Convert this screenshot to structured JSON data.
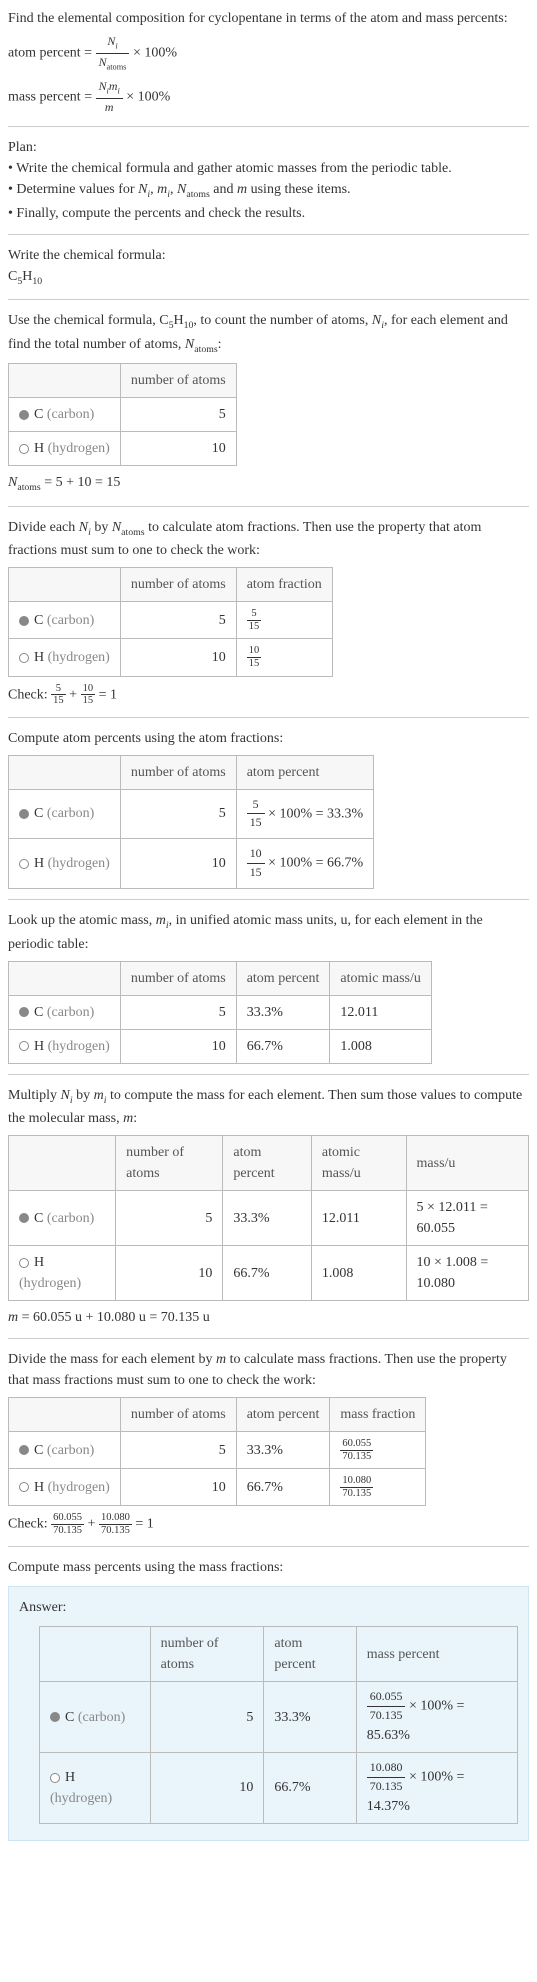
{
  "intro": {
    "line1": "Find the elemental composition for cyclopentane in terms of the atom and mass percents:",
    "atom_percent_label": "atom percent = ",
    "mass_percent_label": "mass percent = ",
    "times_100": " × 100%"
  },
  "plan": {
    "title": "Plan:",
    "items": [
      "• Write the chemical formula and gather atomic masses from the periodic table.",
      "• Determine values for Nᵢ, mᵢ, N_atoms and m using these items.",
      "• Finally, compute the percents and check the results."
    ]
  },
  "step_formula": {
    "label": "Write the chemical formula:",
    "formula_c": "C",
    "formula_c_sub": "5",
    "formula_h": "H",
    "formula_h_sub": "10"
  },
  "step_count": {
    "text1": "Use the chemical formula, C",
    "sub1": "5",
    "text2": "H",
    "sub2": "10",
    "text3": ", to count the number of atoms, ",
    "ni": "N",
    "ni_sub": "i",
    "text4": ", for each element and find the total number of atoms, ",
    "na": "N",
    "na_sub": "atoms",
    "text5": ":",
    "headers": [
      "",
      "number of atoms"
    ],
    "rows": [
      {
        "dot": "filled",
        "elem": "C",
        "label": "(carbon)",
        "n": "5"
      },
      {
        "dot": "hollow",
        "elem": "H",
        "label": "(hydrogen)",
        "n": "10"
      }
    ],
    "sum": "N_atoms = 5 + 10 = 15"
  },
  "step_atomfrac": {
    "text": "Divide each Nᵢ by N_atoms to calculate atom fractions. Then use the property that atom fractions must sum to one to check the work:",
    "headers": [
      "",
      "number of atoms",
      "atom fraction"
    ],
    "rows": [
      {
        "dot": "filled",
        "elem": "C",
        "label": "(carbon)",
        "n": "5",
        "frac_num": "5",
        "frac_den": "15"
      },
      {
        "dot": "hollow",
        "elem": "H",
        "label": "(hydrogen)",
        "n": "10",
        "frac_num": "10",
        "frac_den": "15"
      }
    ],
    "check_label": "Check: ",
    "check_eq": " = 1"
  },
  "step_atompct": {
    "text": "Compute atom percents using the atom fractions:",
    "headers": [
      "",
      "number of atoms",
      "atom percent"
    ],
    "rows": [
      {
        "dot": "filled",
        "elem": "C",
        "label": "(carbon)",
        "n": "5",
        "frac_num": "5",
        "frac_den": "15",
        "result": " × 100% = 33.3%"
      },
      {
        "dot": "hollow",
        "elem": "H",
        "label": "(hydrogen)",
        "n": "10",
        "frac_num": "10",
        "frac_den": "15",
        "result": " × 100% = 66.7%"
      }
    ]
  },
  "step_mass": {
    "text": "Look up the atomic mass, mᵢ, in unified atomic mass units, u, for each element in the periodic table:",
    "headers": [
      "",
      "number of atoms",
      "atom percent",
      "atomic mass/u"
    ],
    "rows": [
      {
        "dot": "filled",
        "elem": "C",
        "label": "(carbon)",
        "n": "5",
        "pct": "33.3%",
        "mass": "12.011"
      },
      {
        "dot": "hollow",
        "elem": "H",
        "label": "(hydrogen)",
        "n": "10",
        "pct": "66.7%",
        "mass": "1.008"
      }
    ]
  },
  "step_molmass": {
    "text": "Multiply Nᵢ by mᵢ to compute the mass for each element. Then sum those values to compute the molecular mass, m:",
    "headers": [
      "",
      "number of atoms",
      "atom percent",
      "atomic mass/u",
      "mass/u"
    ],
    "rows": [
      {
        "dot": "filled",
        "elem": "C",
        "label": "(carbon)",
        "n": "5",
        "pct": "33.3%",
        "mass": "12.011",
        "calc": "5 × 12.011 = 60.055"
      },
      {
        "dot": "hollow",
        "elem": "H",
        "label": "(hydrogen)",
        "n": "10",
        "pct": "66.7%",
        "mass": "1.008",
        "calc": "10 × 1.008 = 10.080"
      }
    ],
    "sum": "m = 60.055 u + 10.080 u = 70.135 u"
  },
  "step_massfrac": {
    "text": "Divide the mass for each element by m to calculate mass fractions. Then use the property that mass fractions must sum to one to check the work:",
    "headers": [
      "",
      "number of atoms",
      "atom percent",
      "mass fraction"
    ],
    "rows": [
      {
        "dot": "filled",
        "elem": "C",
        "label": "(carbon)",
        "n": "5",
        "pct": "33.3%",
        "frac_num": "60.055",
        "frac_den": "70.135"
      },
      {
        "dot": "hollow",
        "elem": "H",
        "label": "(hydrogen)",
        "n": "10",
        "pct": "66.7%",
        "frac_num": "10.080",
        "frac_den": "70.135"
      }
    ],
    "check_label": "Check: ",
    "check_f1_num": "60.055",
    "check_f1_den": "70.135",
    "check_f2_num": "10.080",
    "check_f2_den": "70.135",
    "check_eq": " = 1"
  },
  "step_masspct": {
    "text": "Compute mass percents using the mass fractions:"
  },
  "answer": {
    "label": "Answer:",
    "headers": [
      "",
      "number of atoms",
      "atom percent",
      "mass percent"
    ],
    "rows": [
      {
        "dot": "filled",
        "elem": "C",
        "label": "(carbon)",
        "n": "5",
        "pct": "33.3%",
        "frac_num": "60.055",
        "frac_den": "70.135",
        "result": " × 100% = 85.63%"
      },
      {
        "dot": "hollow",
        "elem": "H",
        "label": "(hydrogen)",
        "n": "10",
        "pct": "66.7%",
        "frac_num": "10.080",
        "frac_den": "70.135",
        "result": " × 100% = 14.37%"
      }
    ]
  },
  "colors": {
    "answer_bg": "#eaf4fb",
    "answer_border": "#cde4f2",
    "gray_text": "#888"
  }
}
